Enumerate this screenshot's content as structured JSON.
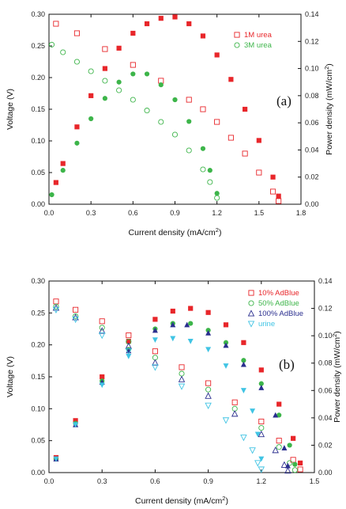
{
  "chart_data": [
    {
      "type": "scatter",
      "panel_label": "(a)",
      "xlabel": "Current density (mA/cm²)",
      "ylabel_left": "Voltage (V)",
      "ylabel_right": "Power density (mW/cm²)",
      "xlim": [
        0,
        1.8
      ],
      "ylim_left": [
        0,
        0.3
      ],
      "ylim_right": [
        0,
        0.14
      ],
      "x_ticks": [
        "0.0",
        "0.3",
        "0.6",
        "0.9",
        "1.2",
        "1.5",
        "1.8"
      ],
      "y_left_ticks": [
        "0.00",
        "0.05",
        "0.10",
        "0.15",
        "0.20",
        "0.25",
        "0.30"
      ],
      "y_right_ticks": [
        "0.00",
        "0.02",
        "0.04",
        "0.06",
        "0.08",
        "0.10",
        "0.12",
        "0.14"
      ],
      "legend_position": "top-right",
      "series": [
        {
          "name": "1M urea",
          "color": "#e8262a",
          "marker": "square",
          "voltage": [
            [
              0.05,
              0.285
            ],
            [
              0.2,
              0.27
            ],
            [
              0.4,
              0.245
            ],
            [
              0.6,
              0.22
            ],
            [
              0.8,
              0.195
            ],
            [
              1.0,
              0.165
            ],
            [
              1.1,
              0.15
            ],
            [
              1.2,
              0.13
            ],
            [
              1.3,
              0.105
            ],
            [
              1.4,
              0.08
            ],
            [
              1.5,
              0.05
            ],
            [
              1.6,
              0.02
            ],
            [
              1.64,
              0.005
            ]
          ],
          "power": [
            [
              0.05,
              0.016
            ],
            [
              0.1,
              0.03
            ],
            [
              0.2,
              0.057
            ],
            [
              0.3,
              0.08
            ],
            [
              0.4,
              0.1
            ],
            [
              0.5,
              0.115
            ],
            [
              0.6,
              0.126
            ],
            [
              0.7,
              0.133
            ],
            [
              0.8,
              0.137
            ],
            [
              0.9,
              0.138
            ],
            [
              1.0,
              0.133
            ],
            [
              1.1,
              0.124
            ],
            [
              1.2,
              0.11
            ],
            [
              1.3,
              0.092
            ],
            [
              1.4,
              0.07
            ],
            [
              1.5,
              0.047
            ],
            [
              1.6,
              0.02
            ],
            [
              1.64,
              0.006
            ]
          ]
        },
        {
          "name": "3M urea",
          "color": "#3db54a",
          "marker": "circle",
          "voltage": [
            [
              0.02,
              0.252
            ],
            [
              0.1,
              0.24
            ],
            [
              0.2,
              0.225
            ],
            [
              0.3,
              0.21
            ],
            [
              0.4,
              0.195
            ],
            [
              0.5,
              0.18
            ],
            [
              0.6,
              0.165
            ],
            [
              0.7,
              0.148
            ],
            [
              0.8,
              0.13
            ],
            [
              0.9,
              0.11
            ],
            [
              1.0,
              0.085
            ],
            [
              1.1,
              0.055
            ],
            [
              1.15,
              0.035
            ],
            [
              1.2,
              0.01
            ]
          ],
          "power": [
            [
              0.02,
              0.007
            ],
            [
              0.1,
              0.025
            ],
            [
              0.2,
              0.045
            ],
            [
              0.3,
              0.063
            ],
            [
              0.4,
              0.078
            ],
            [
              0.5,
              0.09
            ],
            [
              0.6,
              0.096
            ],
            [
              0.7,
              0.096
            ],
            [
              0.8,
              0.088
            ],
            [
              0.9,
              0.077
            ],
            [
              1.0,
              0.061
            ],
            [
              1.1,
              0.041
            ],
            [
              1.15,
              0.025
            ],
            [
              1.2,
              0.008
            ]
          ]
        }
      ]
    },
    {
      "type": "scatter",
      "panel_label": "(b)",
      "xlabel": "Current density (mA/cm²)",
      "ylabel_left": "Voltage (V)",
      "ylabel_right": "Power density (mW/cm²)",
      "xlim": [
        0,
        1.5
      ],
      "ylim_left": [
        0,
        0.3
      ],
      "ylim_right": [
        0,
        0.14
      ],
      "x_ticks": [
        "0.0",
        "0.3",
        "0.6",
        "0.9",
        "1.2",
        "1.5"
      ],
      "y_left_ticks": [
        "0.00",
        "0.05",
        "0.10",
        "0.15",
        "0.20",
        "0.25",
        "0.30"
      ],
      "y_right_ticks": [
        "0.00",
        "0.02",
        "0.04",
        "0.06",
        "0.08",
        "0.10",
        "0.12",
        "0.14"
      ],
      "legend_position": "top-right",
      "series": [
        {
          "name": "10% AdBlue",
          "color": "#e8262a",
          "marker": "square",
          "voltage": [
            [
              0.04,
              0.268
            ],
            [
              0.15,
              0.255
            ],
            [
              0.3,
              0.237
            ],
            [
              0.45,
              0.215
            ],
            [
              0.6,
              0.19
            ],
            [
              0.75,
              0.165
            ],
            [
              0.9,
              0.14
            ],
            [
              1.05,
              0.11
            ],
            [
              1.2,
              0.08
            ],
            [
              1.3,
              0.05
            ],
            [
              1.38,
              0.02
            ],
            [
              1.42,
              0.005
            ]
          ],
          "power": [
            [
              0.04,
              0.011
            ],
            [
              0.15,
              0.038
            ],
            [
              0.3,
              0.07
            ],
            [
              0.45,
              0.096
            ],
            [
              0.6,
              0.112
            ],
            [
              0.7,
              0.118
            ],
            [
              0.8,
              0.12
            ],
            [
              0.9,
              0.117
            ],
            [
              1.0,
              0.108
            ],
            [
              1.1,
              0.095
            ],
            [
              1.2,
              0.075
            ],
            [
              1.3,
              0.05
            ],
            [
              1.38,
              0.025
            ],
            [
              1.42,
              0.007
            ]
          ]
        },
        {
          "name": "50% AdBlue",
          "color": "#3db54a",
          "marker": "circle",
          "voltage": [
            [
              0.04,
              0.26
            ],
            [
              0.15,
              0.245
            ],
            [
              0.3,
              0.227
            ],
            [
              0.45,
              0.205
            ],
            [
              0.6,
              0.18
            ],
            [
              0.75,
              0.155
            ],
            [
              0.9,
              0.13
            ],
            [
              1.05,
              0.1
            ],
            [
              1.2,
              0.07
            ],
            [
              1.3,
              0.04
            ],
            [
              1.36,
              0.015
            ],
            [
              1.39,
              0.004
            ]
          ],
          "power": [
            [
              0.04,
              0.01
            ],
            [
              0.15,
              0.036
            ],
            [
              0.3,
              0.067
            ],
            [
              0.45,
              0.09
            ],
            [
              0.6,
              0.105
            ],
            [
              0.7,
              0.109
            ],
            [
              0.8,
              0.109
            ],
            [
              0.9,
              0.104
            ],
            [
              1.0,
              0.095
            ],
            [
              1.1,
              0.082
            ],
            [
              1.2,
              0.065
            ],
            [
              1.3,
              0.042
            ],
            [
              1.36,
              0.02
            ],
            [
              1.39,
              0.006
            ]
          ]
        },
        {
          "name": "100% AdBlue",
          "color": "#2b2f8f",
          "marker": "triangle-up",
          "voltage": [
            [
              0.04,
              0.258
            ],
            [
              0.15,
              0.243
            ],
            [
              0.3,
              0.222
            ],
            [
              0.45,
              0.198
            ],
            [
              0.6,
              0.172
            ],
            [
              0.75,
              0.146
            ],
            [
              0.9,
              0.12
            ],
            [
              1.05,
              0.092
            ],
            [
              1.2,
              0.06
            ],
            [
              1.28,
              0.035
            ],
            [
              1.33,
              0.012
            ],
            [
              1.35,
              0.003
            ]
          ],
          "power": [
            [
              0.04,
              0.01
            ],
            [
              0.15,
              0.035
            ],
            [
              0.3,
              0.066
            ],
            [
              0.45,
              0.089
            ],
            [
              0.6,
              0.104
            ],
            [
              0.7,
              0.108
            ],
            [
              0.78,
              0.108
            ],
            [
              0.9,
              0.102
            ],
            [
              1.0,
              0.093
            ],
            [
              1.1,
              0.079
            ],
            [
              1.2,
              0.062
            ],
            [
              1.28,
              0.042
            ],
            [
              1.33,
              0.018
            ],
            [
              1.35,
              0.005
            ]
          ]
        },
        {
          "name": "urine",
          "color": "#40c4e4",
          "marker": "triangle-down",
          "voltage": [
            [
              0.04,
              0.255
            ],
            [
              0.15,
              0.24
            ],
            [
              0.3,
              0.215
            ],
            [
              0.45,
              0.19
            ],
            [
              0.6,
              0.165
            ],
            [
              0.75,
              0.135
            ],
            [
              0.9,
              0.105
            ],
            [
              1.0,
              0.082
            ],
            [
              1.1,
              0.055
            ],
            [
              1.15,
              0.035
            ],
            [
              1.18,
              0.015
            ],
            [
              1.2,
              0.005
            ]
          ],
          "power": [
            [
              0.04,
              0.01
            ],
            [
              0.15,
              0.035
            ],
            [
              0.3,
              0.064
            ],
            [
              0.45,
              0.085
            ],
            [
              0.6,
              0.097
            ],
            [
              0.7,
              0.098
            ],
            [
              0.8,
              0.096
            ],
            [
              0.9,
              0.09
            ],
            [
              1.0,
              0.078
            ],
            [
              1.1,
              0.06
            ],
            [
              1.15,
              0.045
            ],
            [
              1.18,
              0.028
            ],
            [
              1.2,
              0.01
            ]
          ]
        }
      ]
    }
  ]
}
